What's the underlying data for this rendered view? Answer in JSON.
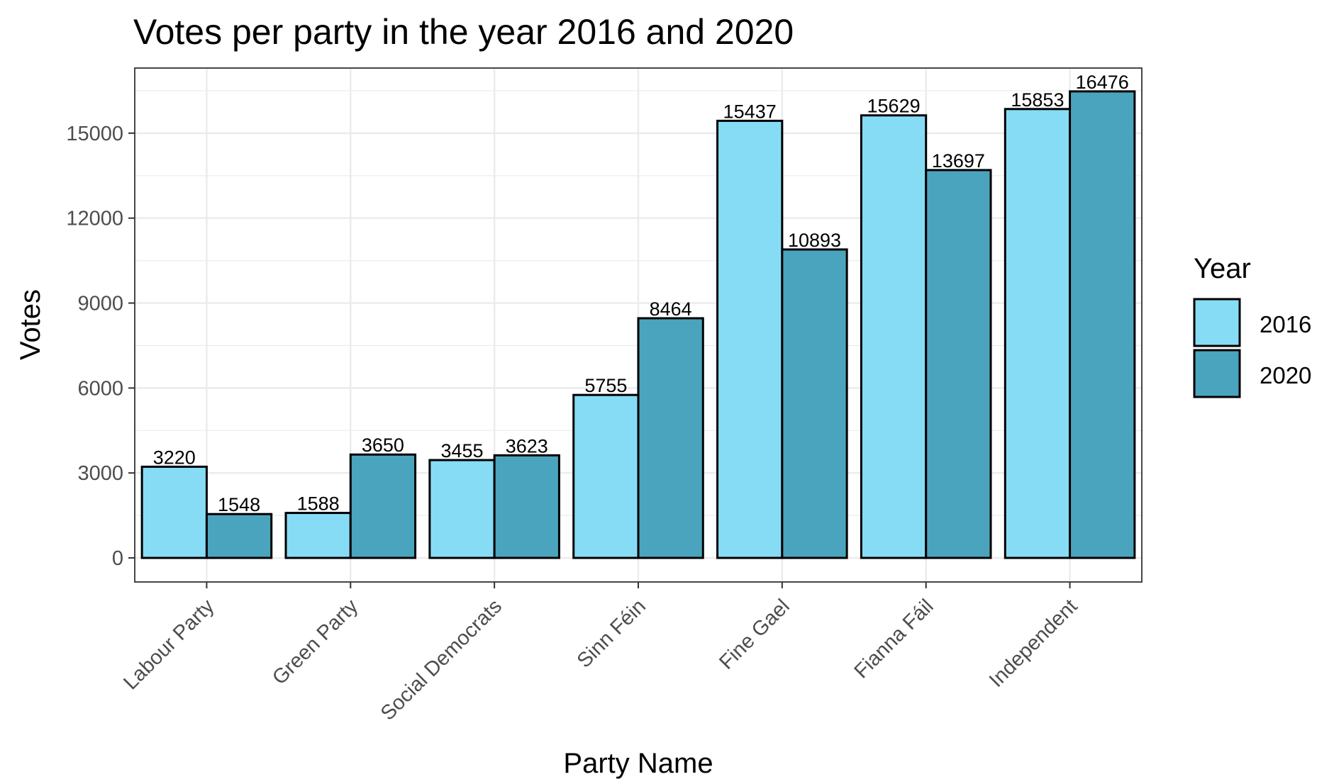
{
  "chart_data": {
    "type": "bar",
    "title": "Votes per party in the year 2016 and 2020",
    "xlabel": "Party Name",
    "ylabel": "Votes",
    "categories": [
      "Labour Party",
      "Green Party",
      "Social Democrats",
      "Sinn Féin",
      "Fine Gael",
      "Fianna Fáil",
      "Independent"
    ],
    "series": [
      {
        "name": "2016",
        "color": "#87dcf5",
        "values": [
          3220,
          1588,
          3455,
          5755,
          15437,
          15629,
          15853
        ]
      },
      {
        "name": "2020",
        "color": "#4aa4be",
        "values": [
          1548,
          3650,
          3623,
          8464,
          10893,
          13697,
          16476
        ]
      }
    ],
    "ylim": [
      -850,
      17300
    ],
    "yticks": [
      0,
      3000,
      6000,
      9000,
      12000,
      15000
    ],
    "legend": {
      "title": "Year",
      "position": "right"
    },
    "grid": true,
    "bar_border": "#000000",
    "grid_color": "#ebebeb"
  }
}
